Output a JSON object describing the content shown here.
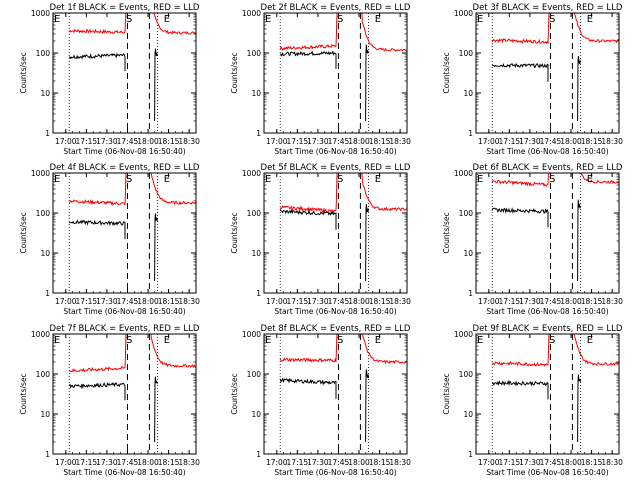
{
  "figure": {
    "start_time_label": "Start Time (06-Nov-08 16:50:40)",
    "ylabel": "Counts/sec",
    "markers": [
      "E",
      "S",
      "E"
    ],
    "x_ticks": [
      "17:00",
      "17:15",
      "17:30",
      "17:45",
      "18:00",
      "18:15",
      "18:30"
    ],
    "y_ticks": [
      "1",
      "10",
      "100",
      "1000"
    ],
    "colors": {
      "events": "#000000",
      "lld": "#ff0000"
    }
  },
  "chart_data": [
    {
      "type": "line",
      "title": "Det 1f BLACK = Events, RED = LLD",
      "xlabel": "Start Time (06-Nov-08 16:50:40)",
      "ylabel": "Counts/sec",
      "ylim": [
        1,
        1000
      ],
      "log_y": true,
      "series": [
        {
          "name": "Events",
          "color": "#000000",
          "level_start": 80,
          "level_end": 88,
          "post_peak": 95
        },
        {
          "name": "LLD",
          "color": "#ff0000",
          "level_start": 360,
          "level_end": 330,
          "post_peak": 320
        }
      ]
    },
    {
      "type": "line",
      "title": "Det 2f BLACK = Events, RED = LLD",
      "xlabel": "Start Time (06-Nov-08 16:50:40)",
      "ylabel": "Counts/sec",
      "ylim": [
        1,
        1000
      ],
      "log_y": true,
      "series": [
        {
          "name": "Events",
          "color": "#000000",
          "level_start": 95,
          "level_end": 100,
          "post_peak": 110
        },
        {
          "name": "LLD",
          "color": "#ff0000",
          "level_start": 130,
          "level_end": 150,
          "post_peak": 120
        }
      ]
    },
    {
      "type": "line",
      "title": "Det 3f BLACK = Events, RED = LLD",
      "xlabel": "Start Time (06-Nov-08 16:50:40)",
      "ylabel": "Counts/sec",
      "ylim": [
        1,
        1000
      ],
      "log_y": true,
      "series": [
        {
          "name": "Events",
          "color": "#000000",
          "level_start": 50,
          "level_end": 48,
          "post_peak": 60
        },
        {
          "name": "LLD",
          "color": "#ff0000",
          "level_start": 210,
          "level_end": 190,
          "post_peak": 200
        }
      ]
    },
    {
      "type": "line",
      "title": "Det 4f BLACK = Events, RED = LLD",
      "xlabel": "Start Time (06-Nov-08 16:50:40)",
      "ylabel": "Counts/sec",
      "ylim": [
        1,
        1000
      ],
      "log_y": true,
      "series": [
        {
          "name": "Events",
          "color": "#000000",
          "level_start": 60,
          "level_end": 55,
          "post_peak": 70
        },
        {
          "name": "LLD",
          "color": "#ff0000",
          "level_start": 200,
          "level_end": 170,
          "post_peak": 180
        }
      ]
    },
    {
      "type": "line",
      "title": "Det 5f BLACK = Events, RED = LLD",
      "xlabel": "Start Time (06-Nov-08 16:50:40)",
      "ylabel": "Counts/sec",
      "ylim": [
        1,
        1000
      ],
      "log_y": true,
      "series": [
        {
          "name": "Events",
          "color": "#000000",
          "level_start": 110,
          "level_end": 95,
          "post_peak": 120
        },
        {
          "name": "LLD",
          "color": "#ff0000",
          "level_start": 140,
          "level_end": 110,
          "post_peak": 125
        }
      ]
    },
    {
      "type": "line",
      "title": "Det 6f BLACK = Events, RED = LLD",
      "xlabel": "Start Time (06-Nov-08 16:50:40)",
      "ylabel": "Counts/sec",
      "ylim": [
        1,
        1000
      ],
      "log_y": true,
      "series": [
        {
          "name": "Events",
          "color": "#000000",
          "level_start": 120,
          "level_end": 110,
          "post_peak": 150
        },
        {
          "name": "LLD",
          "color": "#ff0000",
          "level_start": 620,
          "level_end": 500,
          "post_peak": 600
        }
      ]
    },
    {
      "type": "line",
      "title": "Det 7f BLACK = Events, RED = LLD",
      "xlabel": "Start Time (06-Nov-08 16:50:40)",
      "ylabel": "Counts/sec",
      "ylim": [
        1,
        1000
      ],
      "log_y": true,
      "series": [
        {
          "name": "Events",
          "color": "#000000",
          "level_start": 50,
          "level_end": 55,
          "post_peak": 60
        },
        {
          "name": "LLD",
          "color": "#ff0000",
          "level_start": 120,
          "level_end": 140,
          "post_peak": 160
        }
      ]
    },
    {
      "type": "line",
      "title": "Det 8f BLACK = Events, RED = LLD",
      "xlabel": "Start Time (06-Nov-08 16:50:40)",
      "ylabel": "Counts/sec",
      "ylim": [
        1,
        1000
      ],
      "log_y": true,
      "series": [
        {
          "name": "Events",
          "color": "#000000",
          "level_start": 70,
          "level_end": 60,
          "post_peak": 90
        },
        {
          "name": "LLD",
          "color": "#ff0000",
          "level_start": 230,
          "level_end": 220,
          "post_peak": 200
        }
      ]
    },
    {
      "type": "line",
      "title": "Det 9f BLACK = Events, RED = LLD",
      "xlabel": "Start Time (06-Nov-08 16:50:40)",
      "ylabel": "Counts/sec",
      "ylim": [
        1,
        1000
      ],
      "log_y": true,
      "series": [
        {
          "name": "Events",
          "color": "#000000",
          "level_start": 60,
          "level_end": 58,
          "post_peak": 70
        },
        {
          "name": "LLD",
          "color": "#ff0000",
          "level_start": 190,
          "level_end": 170,
          "post_peak": 180
        }
      ]
    }
  ]
}
